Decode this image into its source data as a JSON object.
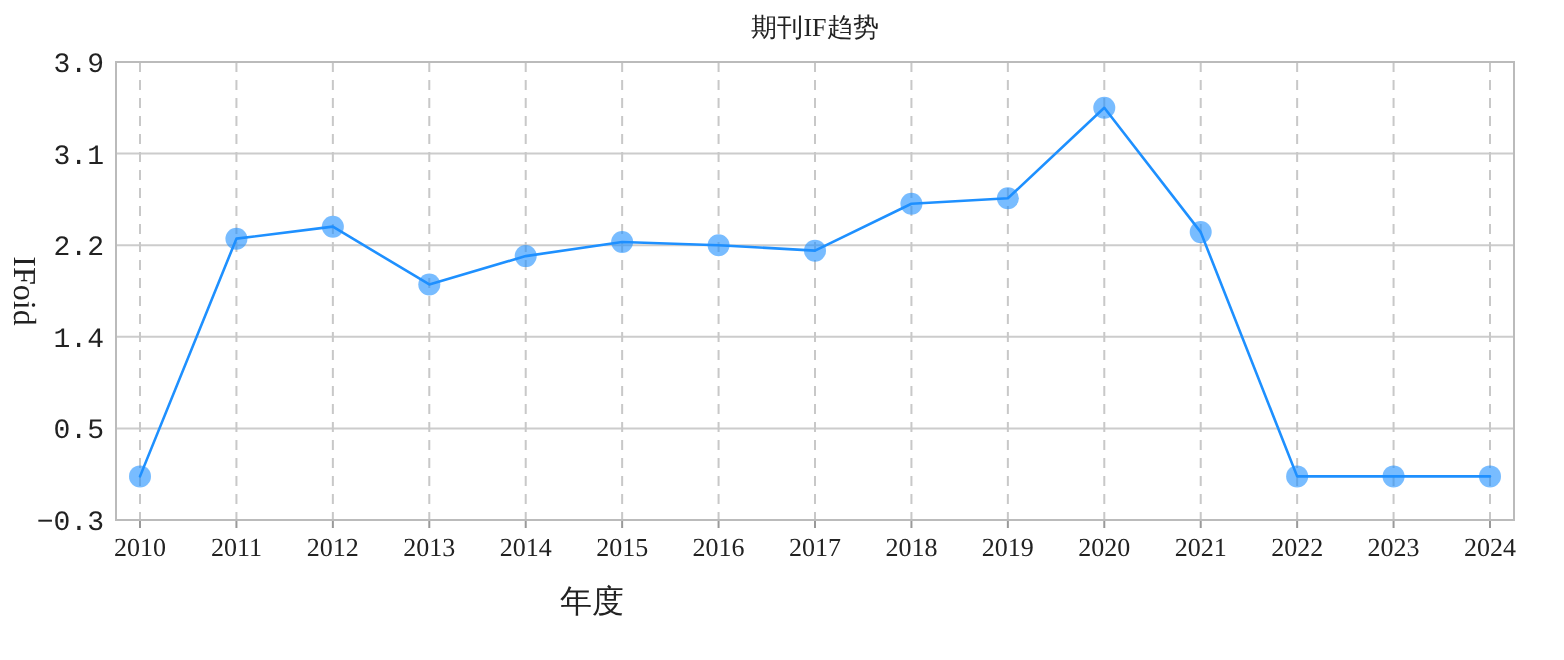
{
  "chart_data": {
    "type": "line",
    "title": "期刊IF趋势",
    "xlabel": "年度",
    "ylabel": "IFoid",
    "categories": [
      "2010",
      "2011",
      "2012",
      "2013",
      "2014",
      "2015",
      "2016",
      "2017",
      "2018",
      "2019",
      "2020",
      "2021",
      "2022",
      "2023",
      "2024"
    ],
    "series": [
      {
        "color": "#1e90ff",
        "values": [
          0.1,
          2.28,
          2.39,
          1.86,
          2.12,
          2.25,
          2.22,
          2.17,
          2.6,
          2.65,
          3.48,
          2.34,
          0.1,
          0.1,
          0.1
        ]
      }
    ],
    "ylim": [
      -0.3,
      3.9
    ],
    "yticks": [
      -0.3,
      {
        "value": 0.54,
        "label": "0.5"
      },
      {
        "value": 1.38,
        "label": "1.4"
      },
      {
        "value": 2.22,
        "label": "2.2"
      },
      {
        "value": 3.06,
        "label": "3.1"
      },
      3.9
    ],
    "grid": true,
    "marker": "circle",
    "line_style": "solid"
  }
}
